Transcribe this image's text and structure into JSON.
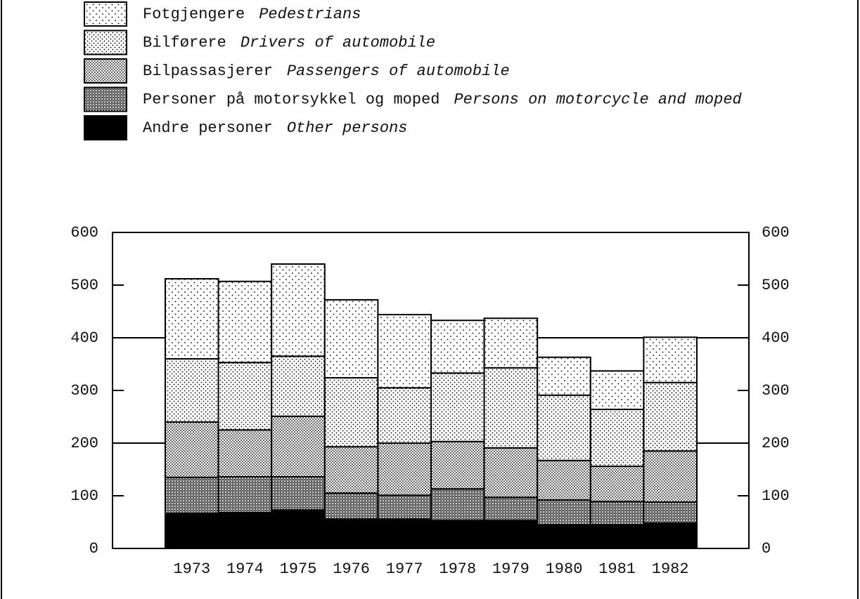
{
  "chart_data": {
    "type": "stacked_bar",
    "categories": [
      "1973",
      "1974",
      "1975",
      "1976",
      "1977",
      "1978",
      "1979",
      "1980",
      "1981",
      "1982"
    ],
    "series": [
      {
        "name": "Fotgjengere",
        "name_en": "Pedestrians",
        "color": "sparse-dots",
        "values": [
          152,
          154,
          175,
          148,
          139,
          100,
          94,
          72,
          73,
          86
        ]
      },
      {
        "name": "Bilførere",
        "name_en": "Drivers of automobile",
        "color": "light-dots",
        "values": [
          120,
          128,
          114,
          131,
          105,
          130,
          152,
          124,
          108,
          130
        ]
      },
      {
        "name": "Bilpassasjerer",
        "name_en": "Passengers of automobile",
        "color": "medium-dots",
        "values": [
          105,
          89,
          115,
          88,
          99,
          90,
          94,
          75,
          67,
          97
        ]
      },
      {
        "name": "Personer på motorsykkel og moped",
        "name_en": "Persons on motorcycle and moped",
        "color": "dense-dots",
        "values": [
          68,
          68,
          63,
          49,
          45,
          60,
          44,
          47,
          44,
          40
        ]
      },
      {
        "name": "Andre personer",
        "name_en": "Other persons",
        "color": "#000000",
        "values": [
          67,
          68,
          73,
          56,
          56,
          53,
          53,
          45,
          45,
          48
        ]
      }
    ],
    "ylim": [
      0,
      600
    ],
    "yticks": [
      0,
      100,
      200,
      300,
      400,
      500,
      600
    ],
    "y2lim": [
      0,
      600
    ],
    "y2ticks": [
      0,
      100,
      200,
      300,
      400,
      500,
      600
    ],
    "grid_values": [
      200,
      400
    ]
  }
}
